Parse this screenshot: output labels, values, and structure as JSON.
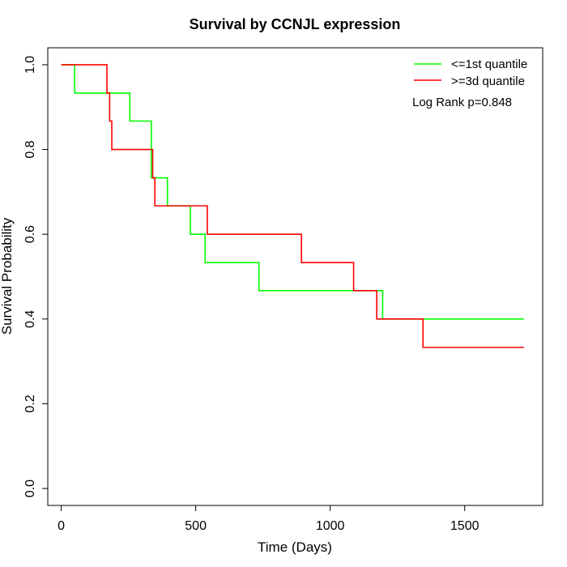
{
  "chart_data": {
    "type": "line",
    "title": "Survival by CCNJL expression",
    "xlabel": "Time (Days)",
    "ylabel": "Survival Probability",
    "xlim": [
      -50,
      1790
    ],
    "ylim": [
      -0.04,
      1.04
    ],
    "x_ticks": [
      0,
      500,
      1000,
      1500
    ],
    "y_ticks": [
      0.0,
      0.2,
      0.4,
      0.6,
      0.8,
      1.0
    ],
    "x_tick_labels": [
      "0",
      "500",
      "1000",
      "1500"
    ],
    "y_tick_labels": [
      "0.0",
      "0.2",
      "0.4",
      "0.6",
      "0.8",
      "1.0"
    ],
    "grid": false,
    "legend_position": "top-right",
    "annotation": "Log Rank p=0.848",
    "series": [
      {
        "name": "<=1st quantile",
        "color": "#00ff00",
        "step": true,
        "points": [
          [
            0,
            1.0
          ],
          [
            50,
            0.933
          ],
          [
            255,
            0.867
          ],
          [
            335,
            0.733
          ],
          [
            395,
            0.667
          ],
          [
            480,
            0.6
          ],
          [
            535,
            0.533
          ],
          [
            735,
            0.467
          ],
          [
            1195,
            0.4
          ],
          [
            1720,
            0.4
          ]
        ]
      },
      {
        "name": ">=3d quantile",
        "color": "#ff0000",
        "step": true,
        "points": [
          [
            0,
            1.0
          ],
          [
            170,
            0.933
          ],
          [
            180,
            0.867
          ],
          [
            188,
            0.8
          ],
          [
            340,
            0.733
          ],
          [
            348,
            0.667
          ],
          [
            543,
            0.6
          ],
          [
            893,
            0.533
          ],
          [
            1087,
            0.467
          ],
          [
            1173,
            0.4
          ],
          [
            1345,
            0.333
          ],
          [
            1720,
            0.333
          ]
        ]
      }
    ]
  }
}
